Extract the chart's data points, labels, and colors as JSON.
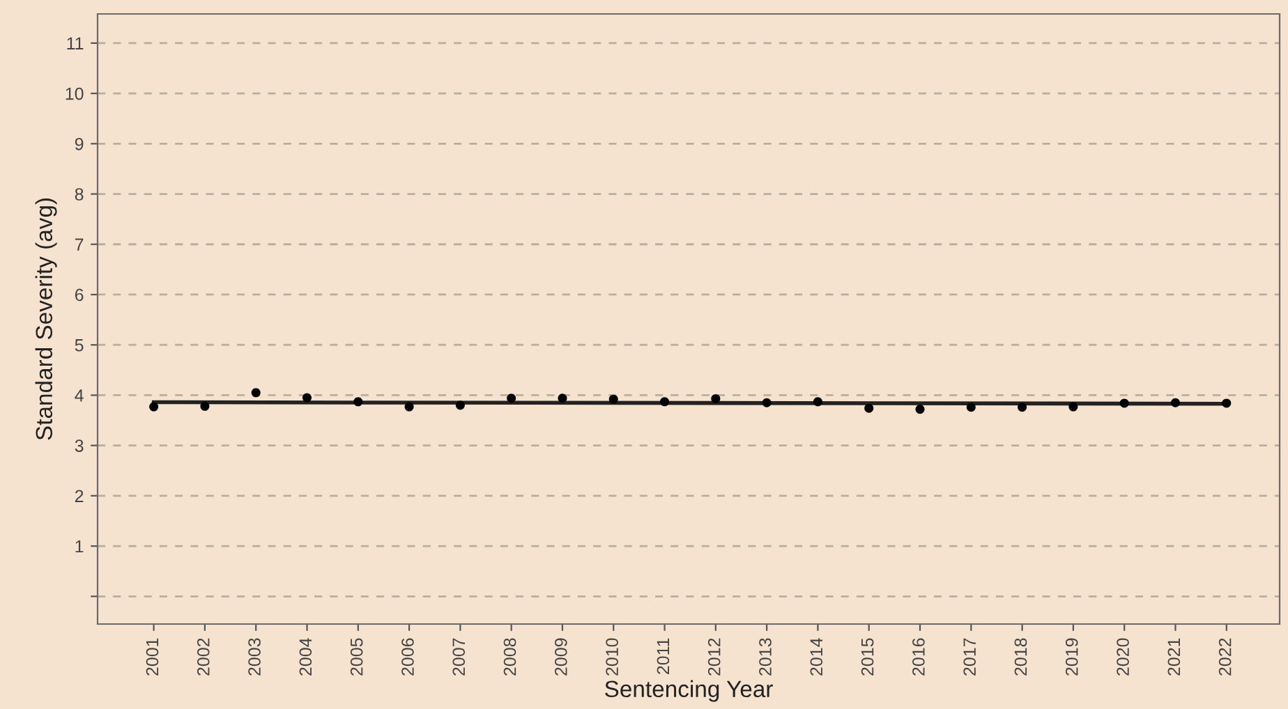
{
  "chart_data": {
    "type": "scatter",
    "xlabel": "Sentencing Year",
    "ylabel": "Standard Severity (avg)",
    "x": [
      2001,
      2002,
      2003,
      2004,
      2005,
      2006,
      2007,
      2008,
      2009,
      2010,
      2011,
      2012,
      2013,
      2014,
      2015,
      2016,
      2017,
      2018,
      2019,
      2020,
      2021,
      2022
    ],
    "series": [
      {
        "color": "#000000",
        "marker": "circle",
        "values": [
          3.77,
          3.78,
          4.05,
          3.95,
          3.87,
          3.77,
          3.8,
          3.94,
          3.94,
          3.92,
          3.87,
          3.93,
          3.85,
          3.87,
          3.74,
          3.72,
          3.76,
          3.76,
          3.77,
          3.84,
          3.85,
          3.84
        ]
      },
      {
        "type": "line",
        "color": "#222222",
        "x": [
          2001,
          2022
        ],
        "values": [
          3.86,
          3.83
        ]
      }
    ],
    "xlim": [
      1999.9,
      2023.04
    ],
    "xticks": [
      2001,
      2002,
      2003,
      2004,
      2005,
      2006,
      2007,
      2008,
      2009,
      2010,
      2011,
      2012,
      2013,
      2014,
      2015,
      2016,
      2017,
      2018,
      2019,
      2020,
      2021,
      2022
    ],
    "ylim": [
      -0.55,
      11.58
    ],
    "yticks": [
      {
        "value": 0,
        "label": null
      },
      1,
      2,
      3,
      4,
      5,
      6,
      7,
      8,
      9,
      10,
      11
    ],
    "grid": "y",
    "legend": false
  }
}
